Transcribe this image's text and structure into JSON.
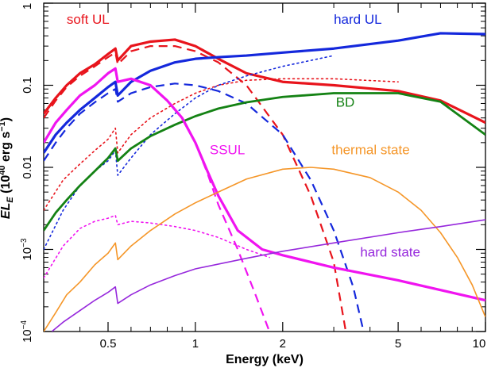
{
  "chart_data": {
    "type": "line",
    "xlabel": "Energy (keV)",
    "ylabel": {
      "main": "EL",
      "sub": "E",
      "unit_open": " (10",
      "unit_exp": "40",
      "unit_mid": " erg s",
      "unit_exp2": "−1",
      "unit_close": ")"
    },
    "xscale": "log",
    "yscale": "log",
    "xlim": [
      0.3,
      10
    ],
    "ylim": [
      0.0001,
      1
    ],
    "grid": false,
    "legend": "none (curves labeled directly)",
    "xticks": [
      {
        "value": 0.5,
        "label": "0.5"
      },
      {
        "value": 1,
        "label": "1"
      },
      {
        "value": 2,
        "label": "2"
      },
      {
        "value": 5,
        "label": "5"
      },
      {
        "value": 10,
        "label": "10"
      }
    ],
    "yticks": [
      {
        "value": 1,
        "label": "1",
        "type": "plain"
      },
      {
        "value": 0.1,
        "label": "0.1",
        "type": "plain"
      },
      {
        "value": 0.01,
        "label": "0.01",
        "type": "plain"
      },
      {
        "value": 0.001,
        "base": "10",
        "exp": "−3",
        "type": "power"
      },
      {
        "value": 0.0001,
        "base": "10",
        "exp": "−4",
        "type": "power"
      }
    ],
    "colors": {
      "soft_ul": "#e8141c",
      "hard_ul": "#1428dc",
      "bd": "#148214",
      "ssul": "#f014f0",
      "thermal": "#f59628",
      "hardstate": "#9628dc"
    },
    "series": [
      {
        "key": "soft_ul_solid",
        "color_key": "soft_ul",
        "style": "solid",
        "width": 3.2,
        "x": [
          0.3,
          0.33,
          0.36,
          0.4,
          0.45,
          0.5,
          0.53,
          0.54,
          0.6,
          0.7,
          0.85,
          1.0,
          1.2,
          1.5,
          2.0,
          3.0,
          5.0,
          7.0,
          10.0
        ],
        "y": [
          0.045,
          0.07,
          0.1,
          0.14,
          0.18,
          0.24,
          0.28,
          0.2,
          0.3,
          0.34,
          0.36,
          0.3,
          0.21,
          0.14,
          0.11,
          0.1,
          0.085,
          0.065,
          0.035
        ]
      },
      {
        "key": "soft_ul_dashed",
        "color_key": "soft_ul",
        "style": "dashed",
        "width": 2.2,
        "x": [
          0.3,
          0.33,
          0.36,
          0.4,
          0.45,
          0.5,
          0.53,
          0.54,
          0.6,
          0.7,
          0.85,
          1.0,
          1.2,
          1.5,
          2.0,
          2.5,
          3.0,
          3.3
        ],
        "y": [
          0.04,
          0.065,
          0.095,
          0.13,
          0.17,
          0.22,
          0.25,
          0.18,
          0.26,
          0.3,
          0.3,
          0.26,
          0.19,
          0.1,
          0.025,
          0.0045,
          0.0007,
          0.0001
        ]
      },
      {
        "key": "soft_ul_dotted",
        "color_key": "soft_ul",
        "style": "dotted",
        "width": 1.6,
        "x": [
          0.3,
          0.35,
          0.4,
          0.45,
          0.5,
          0.53,
          0.54,
          0.6,
          0.7,
          0.85,
          1.0,
          1.2,
          1.5,
          2.0,
          3.0,
          5.0
        ],
        "y": [
          0.003,
          0.007,
          0.011,
          0.016,
          0.022,
          0.03,
          0.015,
          0.025,
          0.04,
          0.06,
          0.08,
          0.1,
          0.115,
          0.12,
          0.12,
          0.11
        ]
      },
      {
        "key": "hard_ul_solid",
        "color_key": "hard_ul",
        "style": "solid",
        "width": 3.2,
        "x": [
          0.3,
          0.33,
          0.36,
          0.4,
          0.45,
          0.5,
          0.53,
          0.54,
          0.6,
          0.7,
          0.85,
          1.0,
          1.2,
          1.5,
          2.0,
          3.0,
          5.0,
          7.0,
          10.0
        ],
        "y": [
          0.015,
          0.025,
          0.035,
          0.05,
          0.07,
          0.095,
          0.11,
          0.075,
          0.11,
          0.15,
          0.19,
          0.21,
          0.22,
          0.23,
          0.25,
          0.28,
          0.35,
          0.43,
          0.42
        ]
      },
      {
        "key": "hard_ul_dashed",
        "color_key": "hard_ul",
        "style": "dashed",
        "width": 2.2,
        "x": [
          0.3,
          0.33,
          0.36,
          0.4,
          0.45,
          0.5,
          0.53,
          0.54,
          0.6,
          0.7,
          0.85,
          1.0,
          1.2,
          1.5,
          2.0,
          2.5,
          3.0,
          3.5,
          3.8
        ],
        "y": [
          0.012,
          0.02,
          0.03,
          0.045,
          0.062,
          0.08,
          0.09,
          0.063,
          0.08,
          0.095,
          0.105,
          0.1,
          0.085,
          0.06,
          0.025,
          0.007,
          0.0017,
          0.00035,
          0.0001
        ]
      },
      {
        "key": "hard_ul_dotted",
        "color_key": "hard_ul",
        "style": "dotted",
        "width": 1.6,
        "x": [
          0.3,
          0.35,
          0.4,
          0.45,
          0.5,
          0.53,
          0.54,
          0.6,
          0.7,
          0.85,
          1.0,
          1.2,
          1.5,
          2.0,
          3.0
        ],
        "y": [
          0.001,
          0.003,
          0.006,
          0.009,
          0.012,
          0.016,
          0.008,
          0.013,
          0.025,
          0.045,
          0.07,
          0.1,
          0.13,
          0.17,
          0.23
        ]
      },
      {
        "key": "bd_solid",
        "color_key": "bd",
        "style": "solid",
        "width": 2.8,
        "x": [
          0.3,
          0.33,
          0.36,
          0.4,
          0.45,
          0.5,
          0.53,
          0.54,
          0.6,
          0.7,
          0.85,
          1.0,
          1.2,
          1.5,
          2.0,
          3.0,
          5.0,
          7.0,
          10.0
        ],
        "y": [
          0.0017,
          0.0028,
          0.004,
          0.006,
          0.009,
          0.013,
          0.017,
          0.012,
          0.017,
          0.024,
          0.033,
          0.042,
          0.052,
          0.062,
          0.072,
          0.08,
          0.08,
          0.063,
          0.025
        ]
      },
      {
        "key": "ssul_solid",
        "color_key": "ssul",
        "style": "solid",
        "width": 3.2,
        "x": [
          0.3,
          0.33,
          0.36,
          0.4,
          0.45,
          0.5,
          0.53,
          0.54,
          0.6,
          0.7,
          0.8,
          0.9,
          1.0,
          1.1,
          1.2,
          1.4,
          1.7,
          2.0,
          3.0,
          5.0,
          7.0,
          10.0
        ],
        "y": [
          0.02,
          0.035,
          0.05,
          0.075,
          0.1,
          0.14,
          0.16,
          0.11,
          0.12,
          0.1,
          0.065,
          0.04,
          0.02,
          0.009,
          0.0045,
          0.0017,
          0.001,
          0.00085,
          0.0006,
          0.00042,
          0.00032,
          0.00024
        ]
      },
      {
        "key": "ssul_dashed",
        "color_key": "ssul",
        "style": "dashed",
        "width": 2.2,
        "x": [
          0.6,
          0.7,
          0.8,
          0.9,
          1.0,
          1.1,
          1.2,
          1.4,
          1.6,
          1.8
        ],
        "y": [
          0.12,
          0.1,
          0.065,
          0.04,
          0.02,
          0.0085,
          0.0035,
          0.001,
          0.0003,
          0.0001
        ]
      },
      {
        "key": "ssul_dotted",
        "color_key": "ssul",
        "style": "dotted",
        "width": 1.6,
        "x": [
          0.3,
          0.35,
          0.4,
          0.45,
          0.5,
          0.53,
          0.54,
          0.6,
          0.7,
          0.85,
          1.0,
          1.2,
          1.5,
          1.8
        ],
        "y": [
          0.00045,
          0.0011,
          0.0018,
          0.0022,
          0.0024,
          0.0026,
          0.002,
          0.0022,
          0.0021,
          0.0019,
          0.0017,
          0.0014,
          0.001,
          0.0008
        ]
      },
      {
        "key": "thermal_solid",
        "color_key": "thermal",
        "style": "solid",
        "width": 1.6,
        "x": [
          0.3,
          0.33,
          0.36,
          0.4,
          0.45,
          0.5,
          0.53,
          0.54,
          0.6,
          0.7,
          0.85,
          1.0,
          1.2,
          1.5,
          2.0,
          2.5,
          3.0,
          4.0,
          5.0,
          6.0,
          7.0,
          8.0,
          9.0,
          10.0
        ],
        "y": [
          0.0001,
          0.00017,
          0.00028,
          0.0004,
          0.00065,
          0.0009,
          0.0012,
          0.00075,
          0.0011,
          0.0017,
          0.0027,
          0.0037,
          0.005,
          0.0072,
          0.0095,
          0.01,
          0.0095,
          0.0075,
          0.005,
          0.003,
          0.0016,
          0.0008,
          0.00037,
          0.00015
        ]
      },
      {
        "key": "hardstate_solid",
        "color_key": "hardstate",
        "style": "solid",
        "width": 1.6,
        "x": [
          0.32,
          0.35,
          0.4,
          0.45,
          0.5,
          0.53,
          0.54,
          0.6,
          0.7,
          0.85,
          1.0,
          1.5,
          2.0,
          3.0,
          5.0,
          7.0,
          10.0
        ],
        "y": [
          0.0001,
          0.00013,
          0.00018,
          0.00024,
          0.0003,
          0.00035,
          0.00022,
          0.00028,
          0.00037,
          0.00048,
          0.00058,
          0.00078,
          0.00095,
          0.0012,
          0.0016,
          0.0019,
          0.0023
        ]
      }
    ],
    "annotations": [
      {
        "key": "label_soft_ul",
        "text": "soft UL",
        "color_key": "soft_ul",
        "x": 0.36,
        "y": 0.56
      },
      {
        "key": "label_hard_ul",
        "text": "hard UL",
        "color_key": "hard_ul",
        "x": 3.0,
        "y": 0.56
      },
      {
        "key": "label_bd",
        "text": "BD",
        "color_key": "bd",
        "x": 3.05,
        "y": 0.055
      },
      {
        "key": "label_ssul",
        "text": "SSUL",
        "color_key": "ssul",
        "x": 1.12,
        "y": 0.0145
      },
      {
        "key": "label_thermal",
        "text": "thermal state",
        "color_key": "thermal",
        "x": 2.95,
        "y": 0.0145
      },
      {
        "key": "label_hardstate",
        "text": "hard state",
        "color_key": "hardstate",
        "x": 3.7,
        "y": 0.00082
      }
    ]
  }
}
